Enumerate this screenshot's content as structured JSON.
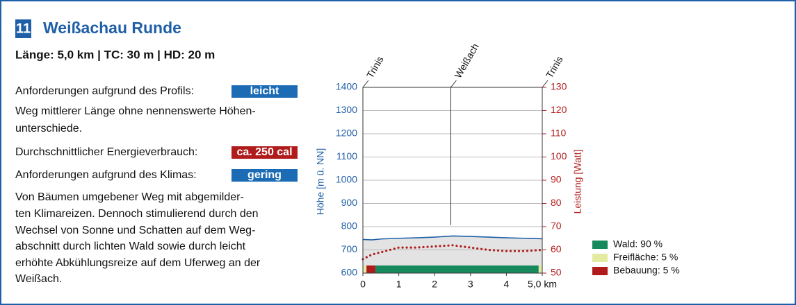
{
  "header": {
    "number": "11",
    "title": "Weißachau Runde",
    "subtitle": "Länge: 5,0 km | TC: 30 m | HD: 20 m"
  },
  "text": {
    "profile_label": "Anforderungen aufgrund des Profils:",
    "profile_badge": "leicht",
    "profile_desc": [
      "Weg mittlerer Länge ohne nennenswerte Höhen-",
      "unterschiede."
    ],
    "energy_label": "Durchschnittlicher Energieverbrauch:",
    "energy_badge": "ca. 250 cal",
    "climate_label": "Anforderungen aufgrund des Klimas:",
    "climate_badge": "gering",
    "climate_desc": [
      "Von Bäumen umgebener Weg mit abgemilder-",
      "ten Klimareizen. Dennoch stimulierend durch den",
      "Wechsel von Sonne und Schatten auf dem Weg-",
      "abschnitt durch lichten Wald sowie durch leicht",
      "erhöhte Abkühlungsreize auf dem Uferweg an der",
      "Weißach."
    ]
  },
  "chart_data": {
    "type": "line",
    "ylabel": "Höhe [m ü. NN]",
    "y2label": "Leistung [Watt]",
    "x": [
      0,
      0.25,
      0.5,
      1,
      1.5,
      2,
      2.5,
      3,
      3.5,
      4,
      4.5,
      5
    ],
    "series": [
      {
        "color": "#1f5fa8",
        "values": [
          745,
          743,
          747,
          750,
          752,
          755,
          760,
          758,
          755,
          752,
          750,
          748
        ]
      },
      {
        "color": "#b01c1c",
        "axis": "y2",
        "style": "dotted",
        "values": [
          56,
          58,
          59,
          61,
          61,
          61.5,
          62,
          61,
          60,
          59.5,
          59.5,
          60
        ]
      }
    ],
    "xlim": [
      0,
      5
    ],
    "xticks": [
      0,
      1,
      2,
      3,
      4,
      {
        "value": 5,
        "label": "5,0 km"
      }
    ],
    "ylim": [
      600,
      1400
    ],
    "yticks": [
      600,
      700,
      800,
      900,
      1000,
      1100,
      1200,
      1300,
      1400
    ],
    "y2lim": [
      50,
      130
    ],
    "y2ticks": [
      50,
      60,
      70,
      80,
      90,
      100,
      110,
      120,
      130
    ],
    "grid": true,
    "waypoints": [
      {
        "x": 0,
        "label": "Trinis"
      },
      {
        "x": 2.45,
        "label": "Weißach"
      },
      {
        "x": 5,
        "label": "Trinis"
      }
    ],
    "land_use": [
      {
        "label": "Wald: 90 %",
        "color": "#168a5c",
        "segments": [
          [
            0.35,
            4.9
          ]
        ]
      },
      {
        "label": "Freifläche: 5 %",
        "color": "#e4eba0",
        "segments": [
          [
            0,
            0.1
          ],
          [
            4.9,
            5
          ]
        ]
      },
      {
        "label": "Bebauung: 5 %",
        "color": "#b01c1c",
        "segments": [
          [
            0.1,
            0.35
          ]
        ]
      }
    ]
  }
}
